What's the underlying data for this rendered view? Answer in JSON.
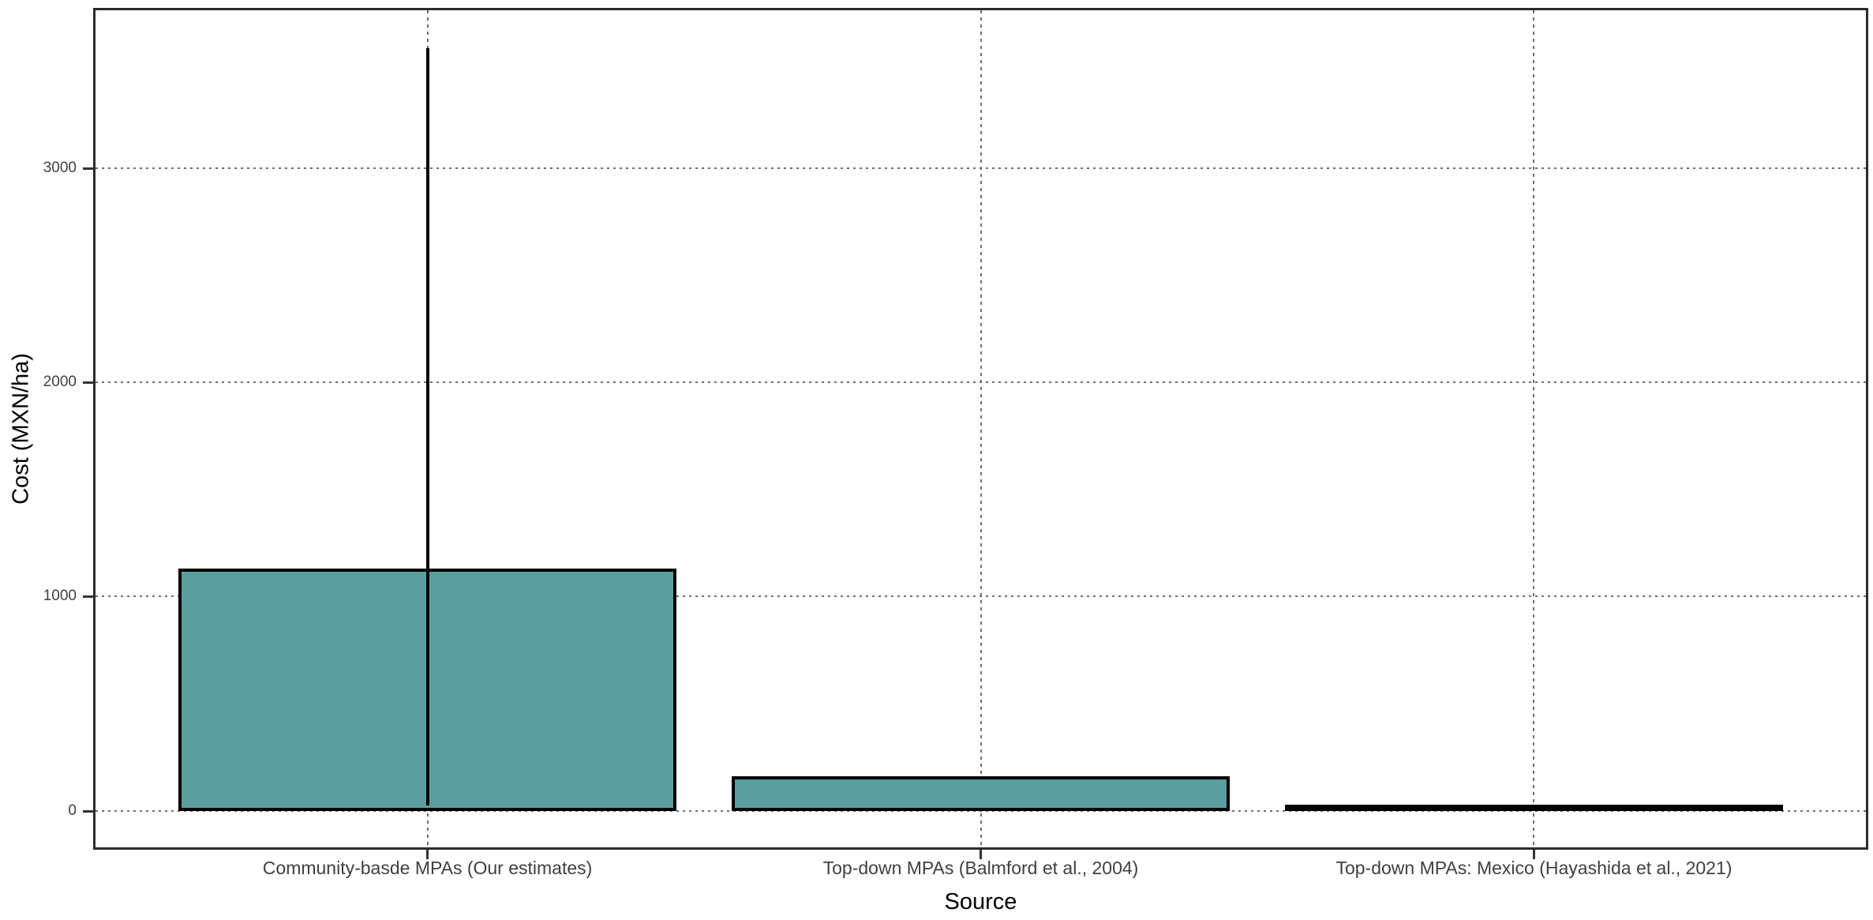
{
  "chart_data": {
    "type": "bar",
    "title": "",
    "xlabel": "Source",
    "ylabel": "Cost (MXN/ha)",
    "categories": [
      "Community-basde MPAs (Our estimates)",
      "Top-down MPAs (Balmford et al., 2004)",
      "Top-down MPAs: Mexico (Hayashida et al., 2021)"
    ],
    "values": [
      1130,
      160,
      2
    ],
    "error_bars": [
      {
        "category_index": 0,
        "ymin": 25,
        "ymax": 3560
      }
    ],
    "yticks": [
      0,
      1000,
      2000,
      3000
    ],
    "ytick_labels": [
      "0",
      "1000",
      "2000",
      "3000"
    ],
    "ylim": [
      -170,
      3735
    ],
    "legend_position": "none",
    "grid": "dotted",
    "colors": {
      "bar_fill": "#5B9EA0",
      "bar_border": "#000000",
      "error_bar": "#000000",
      "gridline": "#6f6f6f",
      "panel_border": "#2b2b2b",
      "tick_text": "#404040",
      "axis_title_text": "#000000",
      "background": "#ffffff"
    }
  }
}
